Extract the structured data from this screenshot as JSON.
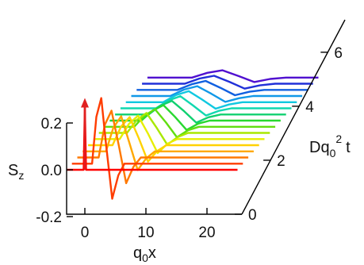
{
  "chart_data": {
    "type": "line",
    "style": "waterfall-3d",
    "x_axis": {
      "label_main": "q",
      "label_sub": "0",
      "label_tail": "x",
      "range": [
        -3,
        25
      ],
      "ticks": [
        {
          "value": 0,
          "label": "0"
        },
        {
          "value": 10,
          "label": "10"
        },
        {
          "value": 20,
          "label": "20"
        }
      ]
    },
    "y_axis": {
      "label_main": "S",
      "label_sub": "z",
      "range": [
        -0.27,
        0.3
      ],
      "ticks": [
        {
          "value": 0.2,
          "label": "0.2"
        },
        {
          "value": 0.0,
          "label": "0.0"
        },
        {
          "value": -0.2,
          "label": "-0.2"
        }
      ]
    },
    "depth_axis": {
      "label_main": "Dq",
      "label_sub": "0",
      "label_sup": "2",
      "label_tail": "t",
      "range": [
        0,
        7.2
      ],
      "ticks": [
        {
          "value": 0,
          "label": "0"
        },
        {
          "value": 2,
          "label": "2"
        },
        {
          "value": 4,
          "label": "4"
        },
        {
          "value": 6,
          "label": "6"
        }
      ]
    },
    "initial_spike": {
      "x": 0,
      "height": 0.3,
      "color": "#e02020"
    },
    "series": [
      {
        "t": 0.0,
        "color": "#ff0000",
        "x": [
          -3,
          -0.2,
          0.0,
          0.2,
          25
        ],
        "y": [
          0,
          0,
          0.27,
          0,
          0
        ]
      },
      {
        "t": 0.5,
        "color": "#ff3c00",
        "x": [
          -3,
          0.3,
          1,
          1.8,
          2.6,
          3.6,
          4.6,
          5.6,
          25
        ],
        "y": [
          0,
          0,
          0.2,
          0.28,
          0.08,
          -0.15,
          -0.05,
          0,
          0
        ]
      },
      {
        "t": 1.0,
        "color": "#ff7800",
        "x": [
          -3,
          0.5,
          1.5,
          2.6,
          3.8,
          5.0,
          6.2,
          7.4,
          25
        ],
        "y": [
          0,
          0,
          0.14,
          0.2,
          0.05,
          -0.11,
          -0.04,
          0,
          0
        ]
      },
      {
        "t": 1.5,
        "color": "#ffa800",
        "x": [
          -3,
          0.8,
          2.0,
          3.3,
          4.6,
          6.0,
          7.4,
          8.8,
          25
        ],
        "y": [
          0,
          0,
          0.1,
          0.15,
          0.04,
          -0.08,
          -0.03,
          0,
          0
        ]
      },
      {
        "t": 2.0,
        "color": "#ffd200",
        "x": [
          -3,
          1.0,
          2.4,
          3.8,
          5.3,
          6.8,
          8.3,
          9.8,
          25
        ],
        "y": [
          0,
          0,
          0.08,
          0.12,
          0.03,
          -0.07,
          -0.025,
          0,
          0
        ]
      },
      {
        "t": 2.5,
        "color": "#e6ee00",
        "x": [
          -3,
          1.3,
          2.8,
          4.3,
          5.9,
          7.5,
          9.1,
          10.7,
          25
        ],
        "y": [
          0,
          0,
          0.065,
          0.1,
          0.025,
          -0.06,
          -0.02,
          0,
          0
        ]
      },
      {
        "t": 3.0,
        "color": "#a8e800",
        "x": [
          -3,
          1.6,
          3.2,
          4.8,
          6.5,
          8.2,
          9.9,
          11.6,
          25
        ],
        "y": [
          0,
          0,
          0.055,
          0.085,
          0.02,
          -0.05,
          -0.018,
          0,
          0
        ]
      },
      {
        "t": 3.5,
        "color": "#60de10",
        "x": [
          -3,
          1.9,
          3.6,
          5.3,
          7.1,
          8.9,
          10.7,
          12.5,
          25
        ],
        "y": [
          0,
          0,
          0.048,
          0.075,
          0.018,
          -0.045,
          -0.015,
          0,
          0
        ]
      },
      {
        "t": 4.0,
        "color": "#28d830",
        "x": [
          -3,
          2.2,
          4.0,
          5.8,
          7.7,
          9.6,
          11.5,
          13.4,
          25
        ],
        "y": [
          0,
          0,
          0.042,
          0.066,
          0.016,
          -0.04,
          -0.013,
          0,
          0
        ]
      },
      {
        "t": 4.5,
        "color": "#10d070",
        "x": [
          -3,
          2.5,
          4.4,
          6.3,
          8.3,
          10.3,
          12.3,
          14.3,
          25
        ],
        "y": [
          0,
          0,
          0.037,
          0.058,
          0.014,
          -0.035,
          -0.012,
          0,
          0
        ]
      },
      {
        "t": 5.0,
        "color": "#10d8b0",
        "x": [
          -3,
          2.8,
          4.8,
          6.8,
          8.9,
          11.0,
          13.1,
          15.2,
          25
        ],
        "y": [
          0,
          0,
          0.033,
          0.052,
          0.012,
          -0.031,
          -0.011,
          0,
          0
        ]
      },
      {
        "t": 5.5,
        "color": "#10c8e0",
        "x": [
          -3,
          3.1,
          5.2,
          7.3,
          9.5,
          11.7,
          13.9,
          16.1,
          25
        ],
        "y": [
          0,
          0,
          0.03,
          0.047,
          0.011,
          -0.028,
          -0.01,
          0,
          0
        ]
      },
      {
        "t": 6.0,
        "color": "#1098e8",
        "x": [
          -3,
          3.4,
          5.6,
          7.8,
          10.1,
          12.4,
          14.7,
          17.0,
          25
        ],
        "y": [
          0,
          0,
          0.027,
          0.042,
          0.01,
          -0.025,
          -0.009,
          0,
          0
        ]
      },
      {
        "t": 6.5,
        "color": "#1060e0",
        "x": [
          -3,
          3.7,
          6.0,
          8.3,
          10.7,
          13.1,
          15.5,
          17.9,
          25
        ],
        "y": [
          0,
          0,
          0.024,
          0.038,
          0.009,
          -0.023,
          -0.008,
          0,
          0
        ]
      },
      {
        "t": 7.0,
        "color": "#2030d8",
        "x": [
          -3,
          4.0,
          6.4,
          8.8,
          11.3,
          13.8,
          16.3,
          18.8,
          25
        ],
        "y": [
          0,
          0,
          0.022,
          0.034,
          0.008,
          -0.021,
          -0.007,
          0,
          0
        ]
      },
      {
        "t": 7.5,
        "color": "#5010d0",
        "x": [
          -3,
          4.3,
          6.8,
          9.3,
          11.9,
          14.5,
          17.1,
          19.7,
          25
        ],
        "y": [
          0,
          0,
          0.02,
          0.031,
          0.007,
          -0.019,
          -0.006,
          0,
          0
        ]
      }
    ]
  }
}
